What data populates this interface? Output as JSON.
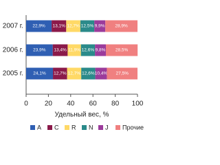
{
  "chart_data": {
    "type": "stacked-barh",
    "categories": [
      "2007 г.",
      "2006 г.",
      "2005 г."
    ],
    "series": [
      {
        "name": "A",
        "color": "#2f5fb3",
        "values": [
          22.9,
          23.9,
          24.1
        ],
        "value_labels": [
          "22,9%",
          "23,9%",
          "24,1%"
        ]
      },
      {
        "name": "C",
        "color": "#8b1a4a",
        "values": [
          13.1,
          13.4,
          12.7
        ],
        "value_labels": [
          "13,1%",
          "13,4%",
          "12,7%"
        ]
      },
      {
        "name": "R",
        "color": "#ffd966",
        "values": [
          12.7,
          11.9,
          12.7
        ],
        "value_labels": [
          "12,7%",
          "11,9%",
          "12,7%"
        ]
      },
      {
        "name": "N",
        "color": "#2a8a8a",
        "values": [
          12.5,
          12.6,
          12.6
        ],
        "value_labels": [
          "12,5%",
          "12,6%",
          "12,6%"
        ]
      },
      {
        "name": "J",
        "color": "#9b3b9b",
        "values": [
          9.9,
          9.8,
          10.4
        ],
        "value_labels": [
          "9,9%",
          "9,8%",
          "10,4%"
        ]
      },
      {
        "name": "Прочие",
        "color": "#f08080",
        "values": [
          28.9,
          28.5,
          27.5
        ],
        "value_labels": [
          "28,9%",
          "28,5%",
          "27,5%"
        ]
      }
    ],
    "xlabel": "Удельный вес, %",
    "xlim": [
      0,
      100
    ],
    "xticks": [
      0,
      20,
      40,
      60,
      80,
      100
    ],
    "grid": false
  }
}
